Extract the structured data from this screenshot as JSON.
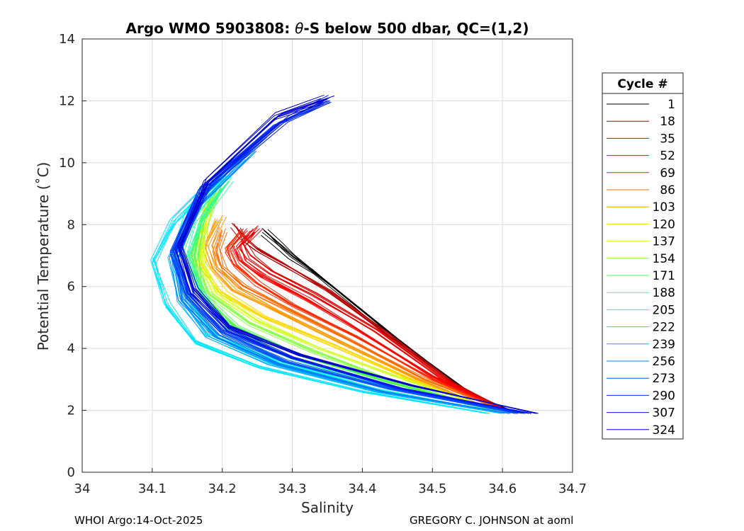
{
  "chart_data": {
    "type": "line",
    "title_prefix": "Argo WMO 5903808: ",
    "title_theta": "θ",
    "title_suffix": "-S below 500 dbar,  QC=(1,2)",
    "xlabel": "Salinity",
    "ylabel": "Potential Temperature (˚C)",
    "xlim": [
      34,
      34.7
    ],
    "ylim": [
      0,
      14
    ],
    "xticks": [
      34,
      34.1,
      34.2,
      34.3,
      34.4,
      34.5,
      34.6,
      34.7
    ],
    "xtick_labels": [
      "34",
      "34.1",
      "34.2",
      "34.3",
      "34.4",
      "34.5",
      "34.6",
      "34.7"
    ],
    "yticks": [
      0,
      2,
      4,
      6,
      8,
      10,
      12,
      14
    ],
    "ytick_labels": [
      "0",
      "2",
      "4",
      "6",
      "8",
      "10",
      "12",
      "14"
    ],
    "grid": true,
    "legend_title": "Cycle #",
    "legend_position": "right, outside",
    "legend": [
      {
        "label": "1",
        "color": "#000000"
      },
      {
        "label": "18",
        "color": "#b40000"
      },
      {
        "label": "35",
        "color": "#e60000"
      },
      {
        "label": "52",
        "color": "#ff0000"
      },
      {
        "label": "69",
        "color": "#ff2a00"
      },
      {
        "label": "86",
        "color": "#ff6a00"
      },
      {
        "label": "103",
        "color": "#ff9a00"
      },
      {
        "label": "120",
        "color": "#ffd700"
      },
      {
        "label": "137",
        "color": "#d4ff2a"
      },
      {
        "label": "154",
        "color": "#8cff4d"
      },
      {
        "label": "171",
        "color": "#4dff4d"
      },
      {
        "label": "188",
        "color": "#33ffa0"
      },
      {
        "label": "205",
        "color": "#1affd9"
      },
      {
        "label": "222",
        "color": "#00e6ff"
      },
      {
        "label": "239",
        "color": "#00b3ff"
      },
      {
        "label": "256",
        "color": "#0080ff"
      },
      {
        "label": "273",
        "color": "#0055ff"
      },
      {
        "label": "290",
        "color": "#0033ff"
      },
      {
        "label": "307",
        "color": "#0019e6"
      },
      {
        "label": "324",
        "color": "#0000cc"
      }
    ],
    "series": [
      {
        "cycle": 1,
        "S": [
          34.62,
          34.55,
          34.45,
          34.38,
          34.33,
          34.3,
          34.28,
          34.26
        ],
        "T": [
          1.9,
          2.6,
          4.3,
          5.6,
          6.5,
          7.0,
          7.4,
          7.8
        ]
      },
      {
        "cycle": 18,
        "S": [
          34.61,
          34.53,
          34.43,
          34.35,
          34.29,
          34.25,
          34.23,
          34.22
        ],
        "T": [
          1.95,
          2.9,
          4.6,
          5.9,
          6.7,
          7.2,
          7.6,
          7.95
        ]
      },
      {
        "cycle": 35,
        "S": [
          34.61,
          34.52,
          34.42,
          34.33,
          34.27,
          34.24,
          34.23,
          34.25
        ],
        "T": [
          1.95,
          2.95,
          4.6,
          5.8,
          6.5,
          7.0,
          7.4,
          7.9
        ]
      },
      {
        "cycle": 52,
        "S": [
          34.6,
          34.5,
          34.4,
          34.32,
          34.26,
          34.23,
          34.22,
          34.24
        ],
        "T": [
          2.0,
          3.1,
          4.5,
          5.6,
          6.3,
          6.8,
          7.3,
          7.8
        ]
      },
      {
        "cycle": 69,
        "S": [
          34.6,
          34.5,
          34.39,
          34.3,
          34.25,
          34.22,
          34.21,
          34.23
        ],
        "T": [
          2.0,
          3.0,
          4.4,
          5.4,
          6.1,
          6.7,
          7.2,
          7.7
        ]
      },
      {
        "cycle": 86,
        "S": [
          34.6,
          34.49,
          34.38,
          34.29,
          34.23,
          34.2,
          34.19,
          34.2
        ],
        "T": [
          2.0,
          3.0,
          4.3,
          5.3,
          6.0,
          6.6,
          7.2,
          7.8
        ]
      },
      {
        "cycle": 103,
        "S": [
          34.59,
          34.48,
          34.37,
          34.28,
          34.22,
          34.19,
          34.18,
          34.2
        ],
        "T": [
          2.0,
          3.0,
          4.2,
          5.2,
          5.9,
          6.6,
          7.3,
          8.2
        ]
      },
      {
        "cycle": 120,
        "S": [
          34.59,
          34.47,
          34.36,
          34.26,
          34.2,
          34.17,
          34.17,
          34.18
        ],
        "T": [
          2.0,
          3.0,
          4.1,
          5.0,
          5.8,
          6.7,
          7.7,
          8.8
        ]
      },
      {
        "cycle": 137,
        "S": [
          34.59,
          34.46,
          34.34,
          34.25,
          34.19,
          34.17,
          34.17,
          34.19
        ],
        "T": [
          2.0,
          3.0,
          4.0,
          4.9,
          5.8,
          6.8,
          7.9,
          9.2
        ]
      },
      {
        "cycle": 154,
        "S": [
          34.59,
          34.45,
          34.33,
          34.24,
          34.18,
          34.16,
          34.17,
          34.19
        ],
        "T": [
          2.0,
          2.9,
          3.9,
          4.8,
          5.8,
          6.9,
          8.0,
          9.2
        ]
      },
      {
        "cycle": 171,
        "S": [
          34.59,
          34.44,
          34.31,
          34.22,
          34.17,
          34.16,
          34.17,
          34.2
        ],
        "T": [
          2.0,
          2.9,
          3.8,
          4.7,
          5.8,
          7.0,
          8.1,
          9.3
        ]
      },
      {
        "cycle": 188,
        "S": [
          34.59,
          34.43,
          34.3,
          34.21,
          34.17,
          34.15,
          34.17,
          34.21
        ],
        "T": [
          2.0,
          2.8,
          3.7,
          4.6,
          5.8,
          7.0,
          8.2,
          9.4
        ]
      },
      {
        "cycle": 205,
        "S": [
          34.59,
          34.42,
          34.28,
          34.19,
          34.15,
          34.13,
          34.15,
          34.2
        ],
        "T": [
          1.95,
          2.7,
          3.6,
          4.4,
          5.6,
          7.0,
          8.3,
          9.6
        ]
      },
      {
        "cycle": 222,
        "S": [
          34.58,
          34.4,
          34.25,
          34.16,
          34.12,
          34.1,
          34.13,
          34.2
        ],
        "T": [
          1.9,
          2.6,
          3.4,
          4.2,
          5.4,
          6.8,
          8.1,
          9.7
        ]
      },
      {
        "cycle": 239,
        "S": [
          34.6,
          34.42,
          34.27,
          34.18,
          34.14,
          34.13,
          34.16,
          34.23
        ],
        "T": [
          1.9,
          2.6,
          3.5,
          4.4,
          5.6,
          7.0,
          8.6,
          10.2
        ]
      },
      {
        "cycle": 256,
        "S": [
          34.61,
          34.43,
          34.28,
          34.19,
          34.14,
          34.13,
          34.16,
          34.24
        ],
        "T": [
          1.9,
          2.6,
          3.5,
          4.4,
          5.6,
          7.0,
          8.7,
          10.5
        ]
      },
      {
        "cycle": 273,
        "S": [
          34.62,
          34.44,
          34.29,
          34.2,
          34.15,
          34.13,
          34.17,
          34.26
        ],
        "T": [
          1.9,
          2.7,
          3.6,
          4.5,
          5.7,
          7.1,
          9.0,
          10.9
        ]
      },
      {
        "cycle": 290,
        "S": [
          34.63,
          34.45,
          34.3,
          34.2,
          34.15,
          34.13,
          34.17,
          34.28,
          34.35
        ],
        "T": [
          1.9,
          2.7,
          3.7,
          4.6,
          5.8,
          7.2,
          9.2,
          11.3,
          12.0
        ]
      },
      {
        "cycle": 307,
        "S": [
          34.64,
          34.46,
          34.3,
          34.21,
          34.16,
          34.14,
          34.18,
          34.29,
          34.35
        ],
        "T": [
          1.9,
          2.7,
          3.7,
          4.6,
          5.8,
          7.2,
          9.3,
          11.4,
          12.05
        ]
      },
      {
        "cycle": 324,
        "S": [
          34.65,
          34.47,
          34.31,
          34.21,
          34.16,
          34.14,
          34.18,
          34.28,
          34.35
        ],
        "T": [
          1.9,
          2.8,
          3.8,
          4.7,
          5.9,
          7.3,
          9.4,
          11.5,
          12.05
        ]
      }
    ]
  },
  "footer": {
    "left": "WHOI Argo:14-Oct-2025",
    "right": "GREGORY C. JOHNSON at aoml"
  }
}
